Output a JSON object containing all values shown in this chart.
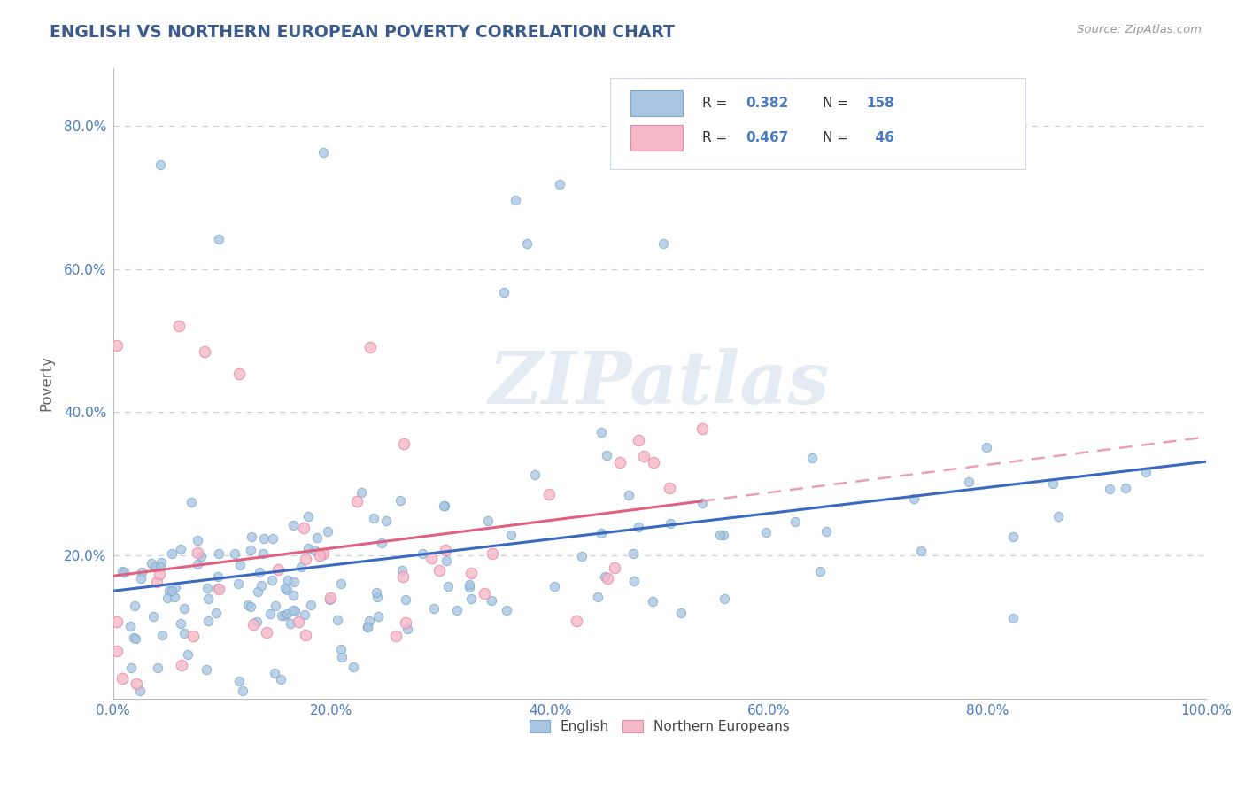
{
  "title": "ENGLISH VS NORTHERN EUROPEAN POVERTY CORRELATION CHART",
  "source": "Source: ZipAtlas.com",
  "ylabel": "Poverty",
  "title_color": "#3a5a8c",
  "axis_color": "#4a7abf",
  "background_color": "#ffffff",
  "english_color": "#a8c4e0",
  "english_edge_color": "#7aaad0",
  "northern_color": "#f5b8c8",
  "northern_edge_color": "#e888a8",
  "english_line_color": "#3a6abf",
  "northern_line_color": "#e06080",
  "northern_dashed_color": "#e8a0b8",
  "english_R": 0.382,
  "english_N": 158,
  "northern_R": 0.467,
  "northern_N": 46,
  "watermark": "ZIPatlas",
  "xlim": [
    0,
    1.0
  ],
  "ylim": [
    0.0,
    0.88
  ],
  "xticks": [
    0.0,
    0.2,
    0.4,
    0.6,
    0.8,
    1.0
  ],
  "ytick_positions": [
    0.2,
    0.4,
    0.6,
    0.8
  ],
  "ytick_labels": [
    "20.0%",
    "40.0%",
    "60.0%",
    "80.0%"
  ],
  "xtick_labels": [
    "0.0%",
    "20.0%",
    "40.0%",
    "60.0%",
    "80.0%",
    "100.0%"
  ],
  "grid_color": "#c8d0e0",
  "english_seed": 42,
  "northern_seed": 7
}
